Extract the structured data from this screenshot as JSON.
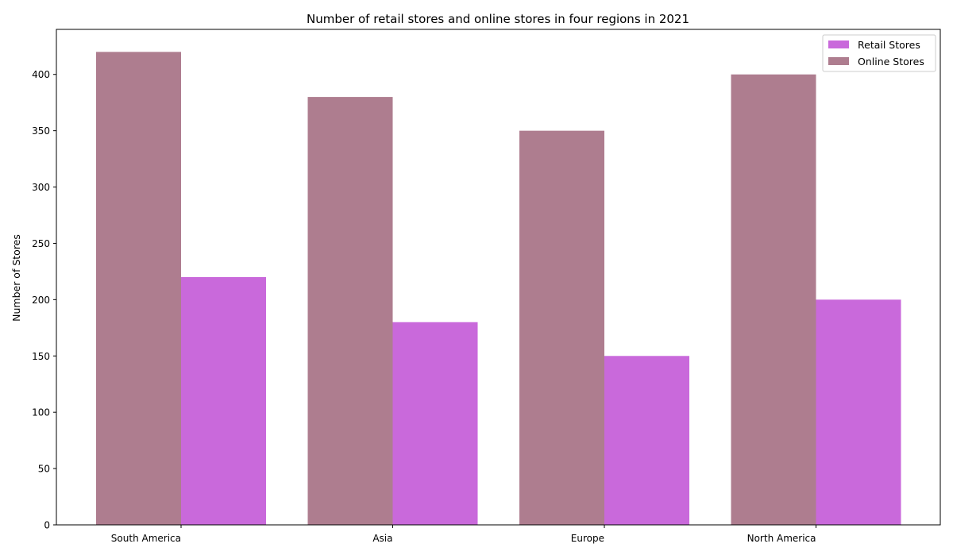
{
  "chart_data": {
    "type": "bar",
    "title": "Number of retail stores and online stores in four regions in 2021",
    "xlabel": "",
    "ylabel": "Number of Stores",
    "categories": [
      "South America",
      "Asia",
      "Europe",
      "North America"
    ],
    "series": [
      {
        "name": "Retail Stores",
        "values": [
          220,
          180,
          150,
          200
        ],
        "color": "#c969db"
      },
      {
        "name": "Online Stores",
        "values": [
          420,
          380,
          350,
          400
        ],
        "color": "#ae7d8f"
      }
    ],
    "ylim": [
      0,
      440
    ],
    "yticks": [
      "0",
      "50",
      "100",
      "150",
      "200",
      "250",
      "300",
      "350",
      "400"
    ],
    "grid": false,
    "legend_position": "top-right"
  }
}
